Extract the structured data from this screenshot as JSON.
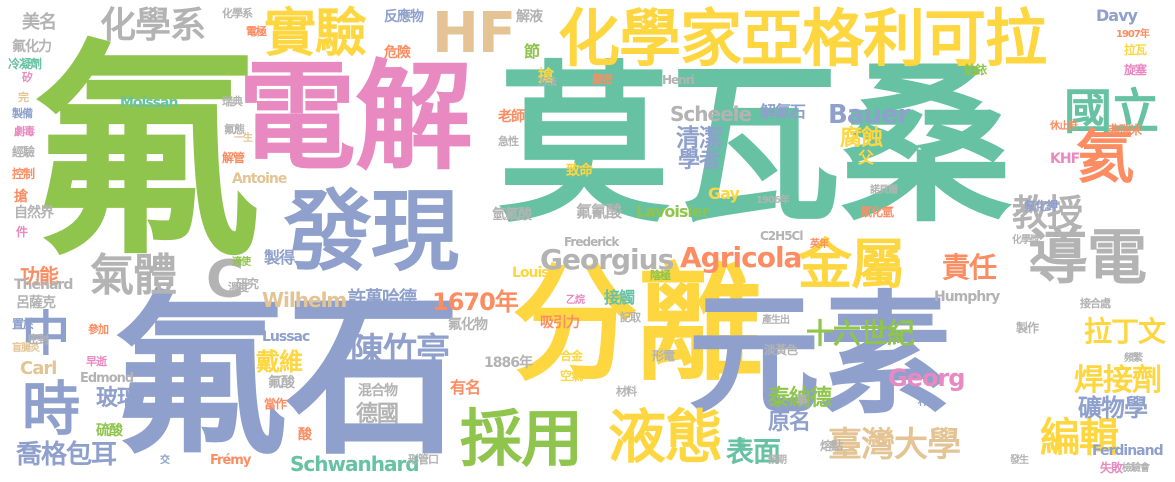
{
  "wordcloud": {
    "palette": {
      "green": "#8fc44d",
      "pink": "#e889c1",
      "teal": "#67c2a3",
      "blue": "#8ea0cb",
      "yellow": "#fdd640",
      "orange": "#fc8d62",
      "tan": "#e4c494",
      "grey": "#b3b3b3"
    },
    "words": {
      "fu": "氟",
      "moissan_zh": "莫瓦桑",
      "dianjie": "電解",
      "fashi": "氟石",
      "fenli": "分離",
      "yuansu": "元素",
      "faxian": "發現",
      "huaxuejia": "化學家亞格利可拉",
      "caiyong": "採用",
      "yetai": "液態",
      "jinshu": "金屬",
      "daodian": "導電",
      "shiyan": "實驗",
      "hf": "HF",
      "huaxuexi": "化學系",
      "qiti": "氣體",
      "c_big": "C",
      "zhong": "中",
      "shi": "時",
      "guoli": "國立",
      "hai": "氦",
      "jiaoshou": "教授",
      "georgius": "Georgius",
      "agricola": "Agricola",
      "chenzhuting": "陳竹亭",
      "shiliushiji": "十六世紀",
      "zeren": "責任",
      "year1670": "1670年",
      "xuwanhade": "許萬哈德",
      "taiwan": "臺灣大學",
      "bianji": "編輯",
      "biaomian": "表面",
      "hanjieji": "焊接劑",
      "kuangwuxue": "礦物學",
      "latinwen": "拉丁文",
      "georg": "Georg",
      "bauer": "Bauer",
      "qingjie": "清潔",
      "xuezhe": "學者",
      "fushi": "腐蝕",
      "jiefushi": "解氟石",
      "scheele": "Scheele",
      "wilhelm": "Wilhelm",
      "schwanhard": "Schwanhard",
      "taina": "泰納德",
      "deguo": "德國",
      "yuanming": "原名",
      "jiewe": "戴維",
      "boli": "玻璃",
      "qiaoge": "喬格包耳",
      "gongneng": "功能",
      "meiming": "美名",
      "huaxue_small": "化學系",
      "fuqingsuan": "氟氰酸",
      "lavoisier": "Lavoisier",
      "gay": "Gay",
      "lussac": "Lussac",
      "louis": "Louis",
      "frederick": "Frederick",
      "humphry": "Humphry",
      "ferdinand": "Ferdinand",
      "edmond": "Edmond",
      "carl": "Carl",
      "thenard": "Thénard",
      "antoine": "Antoine",
      "moissan": "Moissan",
      "henri": "Henri",
      "davy": "Davy",
      "frémy": "Frémy",
      "c2h5cl": "C2H5Cl",
      "khf": "KHF",
      "year1886": "1886年",
      "year1906": "1906年",
      "year1907": "1907年",
      "yanhua": "氟化力",
      "ziranjie": "自然界",
      "lvsake": "呂薩克",
      "jian": "件",
      "zhizuo": "製得",
      "yanjiu": "研究",
      "jiechu": "接觸",
      "xiyinli": "吸引力",
      "fuhuawu": "氟化物",
      "zhiming": "致命",
      "laoshi": "老師",
      "jiesu": "節",
      "qiang": "搶",
      "weixian": "危險",
      "fanying": "反應物",
      "jieye": "解液",
      "fusuan": "氟酸",
      "liusuan": "硫酸",
      "hunhewu": "混合物",
      "youming": "有名",
      "jinshuv": "金屬",
      "hejin": "合金",
      "kongqi": "空氣",
      "danhuangse": "淡黃色",
      "shi2": "事",
      "qiangfu": "氫氟酸",
      "xingdian": "形電",
      "fu_qi": "父",
      "rongdian": "熔點",
      "chanshengchu": "產生出",
      "zhizuo2": "製作",
      "jielie": "劇烈",
      "xiuzhi": "休止符",
      "shibai": "失敗",
      "fuhuajia": "氟化鉀",
      "fuhuaqing": "氟化氫",
      "fuli": "弗瑞米",
      "boli2": "鉑銥",
      "jiezhi": "接合處",
      "jijiang": "化學獎",
      "ruidian": "瑞典",
      "yinji": "陰極",
      "yangji": "陽極",
      "dianji": "電極",
      "dangzuo": "當作",
      "suanxing": "酸",
      "ruanguan": "解管",
      "shiyi": "適使",
      "wendu": "溫度",
      "shiti": "試驗",
      "bu": "步",
      "jilu": "記取",
      "yiyi": "一生",
      "jixing": "急性",
      "fuqi": "氟態",
      "xuehua": "學",
      "kongzhi": "控制",
      "jingyan": "經驗",
      "juqing": "劇毒",
      "zhibei": "製備",
      "lengning": "冷凝劑",
      "wan": "完",
      "gui": "矽",
      "fanghua": "方法",
      "yanmi": "嚴密",
      "yiji": "乙烷",
      "xingguan": "形管口",
      "cailiao": "材料",
      "yuqi": "預期",
      "dian": "電",
      "jianyan": "檢驗會",
      "fasheng": "發生",
      "chengzhong": "秤重",
      "mifeng": "密封",
      "canjia": "參加",
      "zaoqi": "早逝",
      "jiao": "交",
      "huanzhi": "盲腸炎",
      "zhiyu": "置於",
      "yingnian": "英年",
      "xuanzhuan": "旋塞",
      "lali": "拉瓦",
      "nuobeier": "諾貝爾",
      "qianqian": "鉛",
      "pinfan": "頻繁",
      "xiuzhi2": "休止符"
    }
  }
}
